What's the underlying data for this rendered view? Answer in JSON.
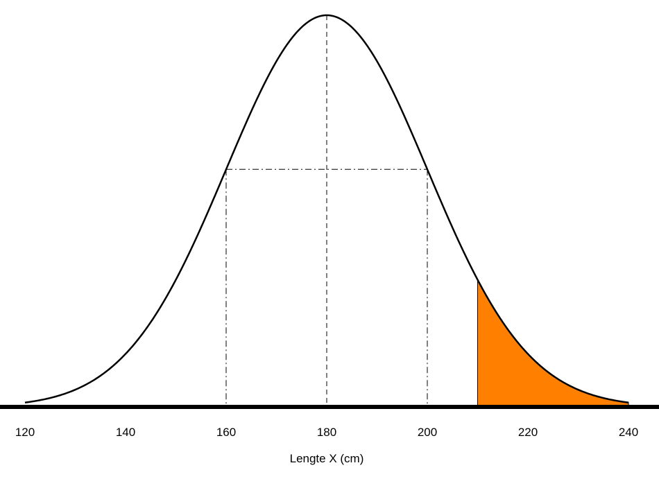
{
  "chart_data": {
    "type": "area",
    "distribution": "normal",
    "mean": 180,
    "sd": 20,
    "xlabel": "Lengte X (cm)",
    "xlim": [
      120,
      240
    ],
    "xticks": [
      120,
      140,
      160,
      180,
      200,
      220,
      240
    ],
    "xtick_labels": [
      "120",
      "140",
      "160",
      "180",
      "200",
      "220",
      "240"
    ],
    "shaded_region": {
      "from": 210,
      "to": 240
    },
    "reference_lines": [
      160,
      180,
      200
    ],
    "grid": false,
    "colors": {
      "curve": "#000000",
      "shade": "#FF8000",
      "axis": "#000000"
    }
  }
}
